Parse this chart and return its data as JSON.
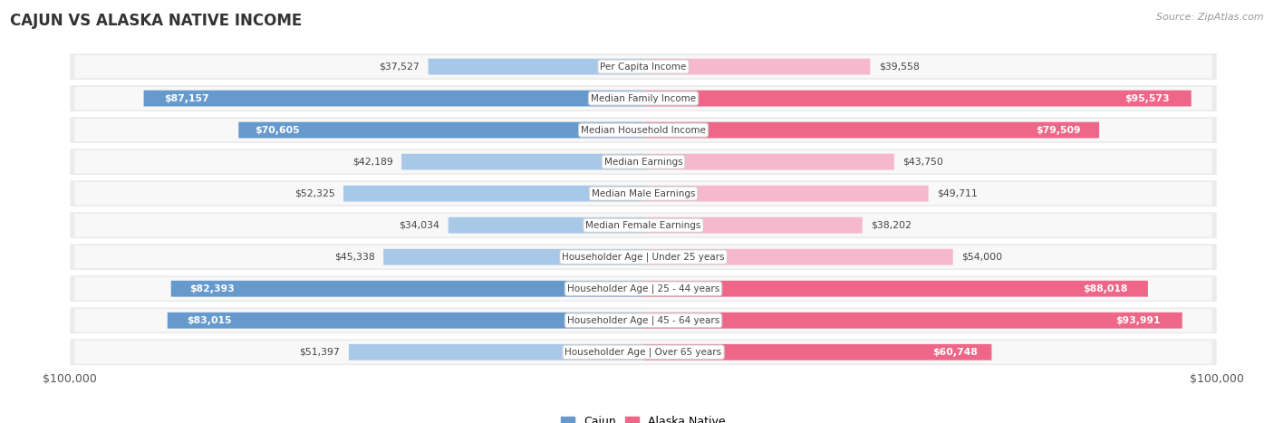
{
  "title": "CAJUN VS ALASKA NATIVE INCOME",
  "source": "Source: ZipAtlas.com",
  "categories": [
    "Per Capita Income",
    "Median Family Income",
    "Median Household Income",
    "Median Earnings",
    "Median Male Earnings",
    "Median Female Earnings",
    "Householder Age | Under 25 years",
    "Householder Age | 25 - 44 years",
    "Householder Age | 45 - 64 years",
    "Householder Age | Over 65 years"
  ],
  "cajun_values": [
    37527,
    87157,
    70605,
    42189,
    52325,
    34034,
    45338,
    82393,
    83015,
    51397
  ],
  "alaska_values": [
    39558,
    95573,
    79509,
    43750,
    49711,
    38202,
    54000,
    88018,
    93991,
    60748
  ],
  "cajun_labels": [
    "$37,527",
    "$87,157",
    "$70,605",
    "$42,189",
    "$52,325",
    "$34,034",
    "$45,338",
    "$82,393",
    "$83,015",
    "$51,397"
  ],
  "alaska_labels": [
    "$39,558",
    "$95,573",
    "$79,509",
    "$43,750",
    "$49,711",
    "$38,202",
    "$54,000",
    "$88,018",
    "$93,991",
    "$60,748"
  ],
  "max_value": 100000,
  "cajun_color_light": "#a8c8e8",
  "cajun_color_dark": "#6699cc",
  "alaska_color_light": "#f5b8cc",
  "alaska_color_dark": "#ee6688",
  "row_bg_color": "#ebebeb",
  "row_inner_color": "#f8f8f8",
  "title_color": "#333333",
  "source_color": "#999999",
  "legend_cajun": "Cajun",
  "legend_alaska": "Alaska Native",
  "threshold": 60000,
  "ylabel_left": "$100,000",
  "ylabel_right": "$100,000"
}
